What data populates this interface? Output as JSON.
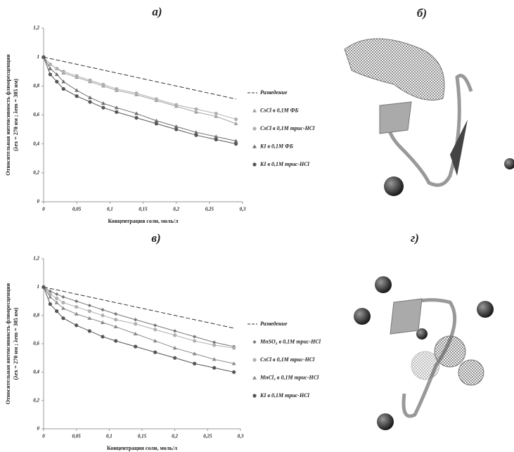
{
  "chart_data": [
    {
      "type": "line",
      "title": "а)",
      "ylabel": [
        "Относительная интенсивность флюоресценции",
        "(λex = 270 нм ; λem = 305 нм)"
      ],
      "xlabel": "Концентрация соли, моль/л",
      "xlim": [
        0,
        0.3
      ],
      "ylim": [
        0,
        1.2
      ],
      "xticks": [
        0,
        {
          "value": 0.05,
          "label": "0,05"
        },
        {
          "value": 0.1,
          "label": "0,1"
        },
        {
          "value": 0.15,
          "label": "0,15"
        },
        {
          "value": 0.2,
          "label": "0,2"
        },
        {
          "value": 0.25,
          "label": "0,25"
        },
        {
          "value": 0.3,
          "label": "0,3"
        }
      ],
      "yticks": [
        0,
        {
          "value": 0.2,
          "label": "0,2"
        },
        {
          "value": 0.4,
          "label": "0,4"
        },
        {
          "value": 0.6,
          "label": "0,6"
        },
        {
          "value": 0.8,
          "label": "0,8"
        },
        1,
        {
          "value": 1.2,
          "label": "1,2"
        }
      ],
      "series": [
        {
          "name": "Разведение",
          "color": "#333333",
          "marker": "none",
          "dash": true,
          "x": [
            0,
            0.29
          ],
          "values": [
            1,
            0.71
          ]
        },
        {
          "name": "CsCl в 0,1М ФБ",
          "color": "#a0a0a0",
          "marker": "triangle",
          "dash": false,
          "x": [
            0,
            0.01,
            0.02,
            0.03,
            0.05,
            0.07,
            0.09,
            0.11,
            0.14,
            0.17,
            0.2,
            0.23,
            0.26,
            0.29
          ],
          "values": [
            1,
            0.95,
            0.92,
            0.89,
            0.86,
            0.83,
            0.8,
            0.77,
            0.74,
            0.7,
            0.66,
            0.62,
            0.59,
            0.54
          ]
        },
        {
          "name": "CsCl в 0,1М трис-HCl",
          "color": "#b0b0b0",
          "marker": "circle",
          "dash": false,
          "x": [
            0,
            0.01,
            0.02,
            0.03,
            0.05,
            0.07,
            0.09,
            0.11,
            0.14,
            0.17,
            0.2,
            0.23,
            0.26,
            0.29
          ],
          "values": [
            1,
            0.95,
            0.92,
            0.9,
            0.87,
            0.84,
            0.81,
            0.78,
            0.75,
            0.71,
            0.67,
            0.64,
            0.61,
            0.57
          ]
        },
        {
          "name": "KI в 0,1М ФБ",
          "color": "#707070",
          "marker": "triangle",
          "dash": false,
          "x": [
            0,
            0.01,
            0.02,
            0.03,
            0.05,
            0.07,
            0.09,
            0.11,
            0.14,
            0.17,
            0.2,
            0.23,
            0.26,
            0.29
          ],
          "values": [
            1,
            0.92,
            0.88,
            0.83,
            0.77,
            0.72,
            0.68,
            0.65,
            0.61,
            0.56,
            0.52,
            0.48,
            0.45,
            0.42
          ]
        },
        {
          "name": "KI в 0,1М трис-HCl",
          "color": "#555555",
          "marker": "circle",
          "dash": false,
          "x": [
            0,
            0.01,
            0.02,
            0.03,
            0.05,
            0.07,
            0.09,
            0.11,
            0.14,
            0.17,
            0.2,
            0.23,
            0.26,
            0.29
          ],
          "values": [
            1,
            0.88,
            0.83,
            0.78,
            0.73,
            0.69,
            0.65,
            0.62,
            0.58,
            0.54,
            0.5,
            0.46,
            0.43,
            0.4
          ]
        }
      ]
    },
    {
      "type": "line",
      "title": "в)",
      "ylabel": [
        "Относительная интенсивность флюоресценции",
        "(λex = 270 нм ; λem = 305 нм)"
      ],
      "xlabel": "Концентрация соли, моль/л",
      "xlim": [
        0,
        0.3
      ],
      "ylim": [
        0,
        1.2
      ],
      "xticks": [
        0,
        {
          "value": 0.05,
          "label": "0,05"
        },
        {
          "value": 0.1,
          "label": "0,1"
        },
        {
          "value": 0.15,
          "label": "0,15"
        },
        {
          "value": 0.2,
          "label": "0,2"
        },
        {
          "value": 0.25,
          "label": "0,25"
        },
        {
          "value": 0.3,
          "label": "0,3"
        }
      ],
      "yticks": [
        0,
        {
          "value": 0.2,
          "label": "0,2"
        },
        {
          "value": 0.4,
          "label": "0,4"
        },
        {
          "value": 0.6,
          "label": "0,6"
        },
        {
          "value": 0.8,
          "label": "0,8"
        },
        1,
        {
          "value": 1.2,
          "label": "1,2"
        }
      ],
      "series": [
        {
          "name": "Разведение",
          "color": "#333333",
          "marker": "none",
          "dash": true,
          "x": [
            0,
            0.29
          ],
          "values": [
            1,
            0.71
          ]
        },
        {
          "name": "MnSO₄ в 0,1М трис-HCl",
          "color": "#777777",
          "marker": "diamond",
          "dash": false,
          "x": [
            0,
            0.01,
            0.02,
            0.03,
            0.05,
            0.07,
            0.09,
            0.11,
            0.14,
            0.17,
            0.2,
            0.23,
            0.26,
            0.29
          ],
          "values": [
            1,
            0.97,
            0.95,
            0.93,
            0.9,
            0.87,
            0.84,
            0.81,
            0.77,
            0.73,
            0.69,
            0.65,
            0.61,
            0.58
          ]
        },
        {
          "name": "CsCl в 0,1М трис-HCl",
          "color": "#b0b0b0",
          "marker": "circle",
          "dash": false,
          "x": [
            0,
            0.01,
            0.02,
            0.03,
            0.05,
            0.07,
            0.09,
            0.11,
            0.14,
            0.17,
            0.2,
            0.23,
            0.26,
            0.29
          ],
          "values": [
            1,
            0.95,
            0.92,
            0.89,
            0.86,
            0.83,
            0.8,
            0.77,
            0.74,
            0.7,
            0.66,
            0.62,
            0.59,
            0.57
          ]
        },
        {
          "name": "MnCl₂ в 0,1М трис-HCl",
          "color": "#8a8a8a",
          "marker": "triangle",
          "dash": false,
          "x": [
            0,
            0.01,
            0.02,
            0.03,
            0.05,
            0.07,
            0.09,
            0.11,
            0.14,
            0.17,
            0.2,
            0.23,
            0.26,
            0.29
          ],
          "values": [
            1,
            0.93,
            0.89,
            0.85,
            0.81,
            0.78,
            0.75,
            0.72,
            0.67,
            0.62,
            0.57,
            0.53,
            0.49,
            0.46
          ]
        },
        {
          "name": "KI в 0,1М трис-HCl",
          "color": "#555555",
          "marker": "circle",
          "dash": false,
          "x": [
            0,
            0.01,
            0.02,
            0.03,
            0.05,
            0.07,
            0.09,
            0.11,
            0.14,
            0.17,
            0.2,
            0.23,
            0.26,
            0.29
          ],
          "values": [
            1,
            0.88,
            0.83,
            0.78,
            0.73,
            0.69,
            0.65,
            0.62,
            0.58,
            0.54,
            0.5,
            0.46,
            0.43,
            0.4
          ]
        }
      ]
    }
  ],
  "images": [
    {
      "label": "б)"
    },
    {
      "label": "г)"
    }
  ]
}
